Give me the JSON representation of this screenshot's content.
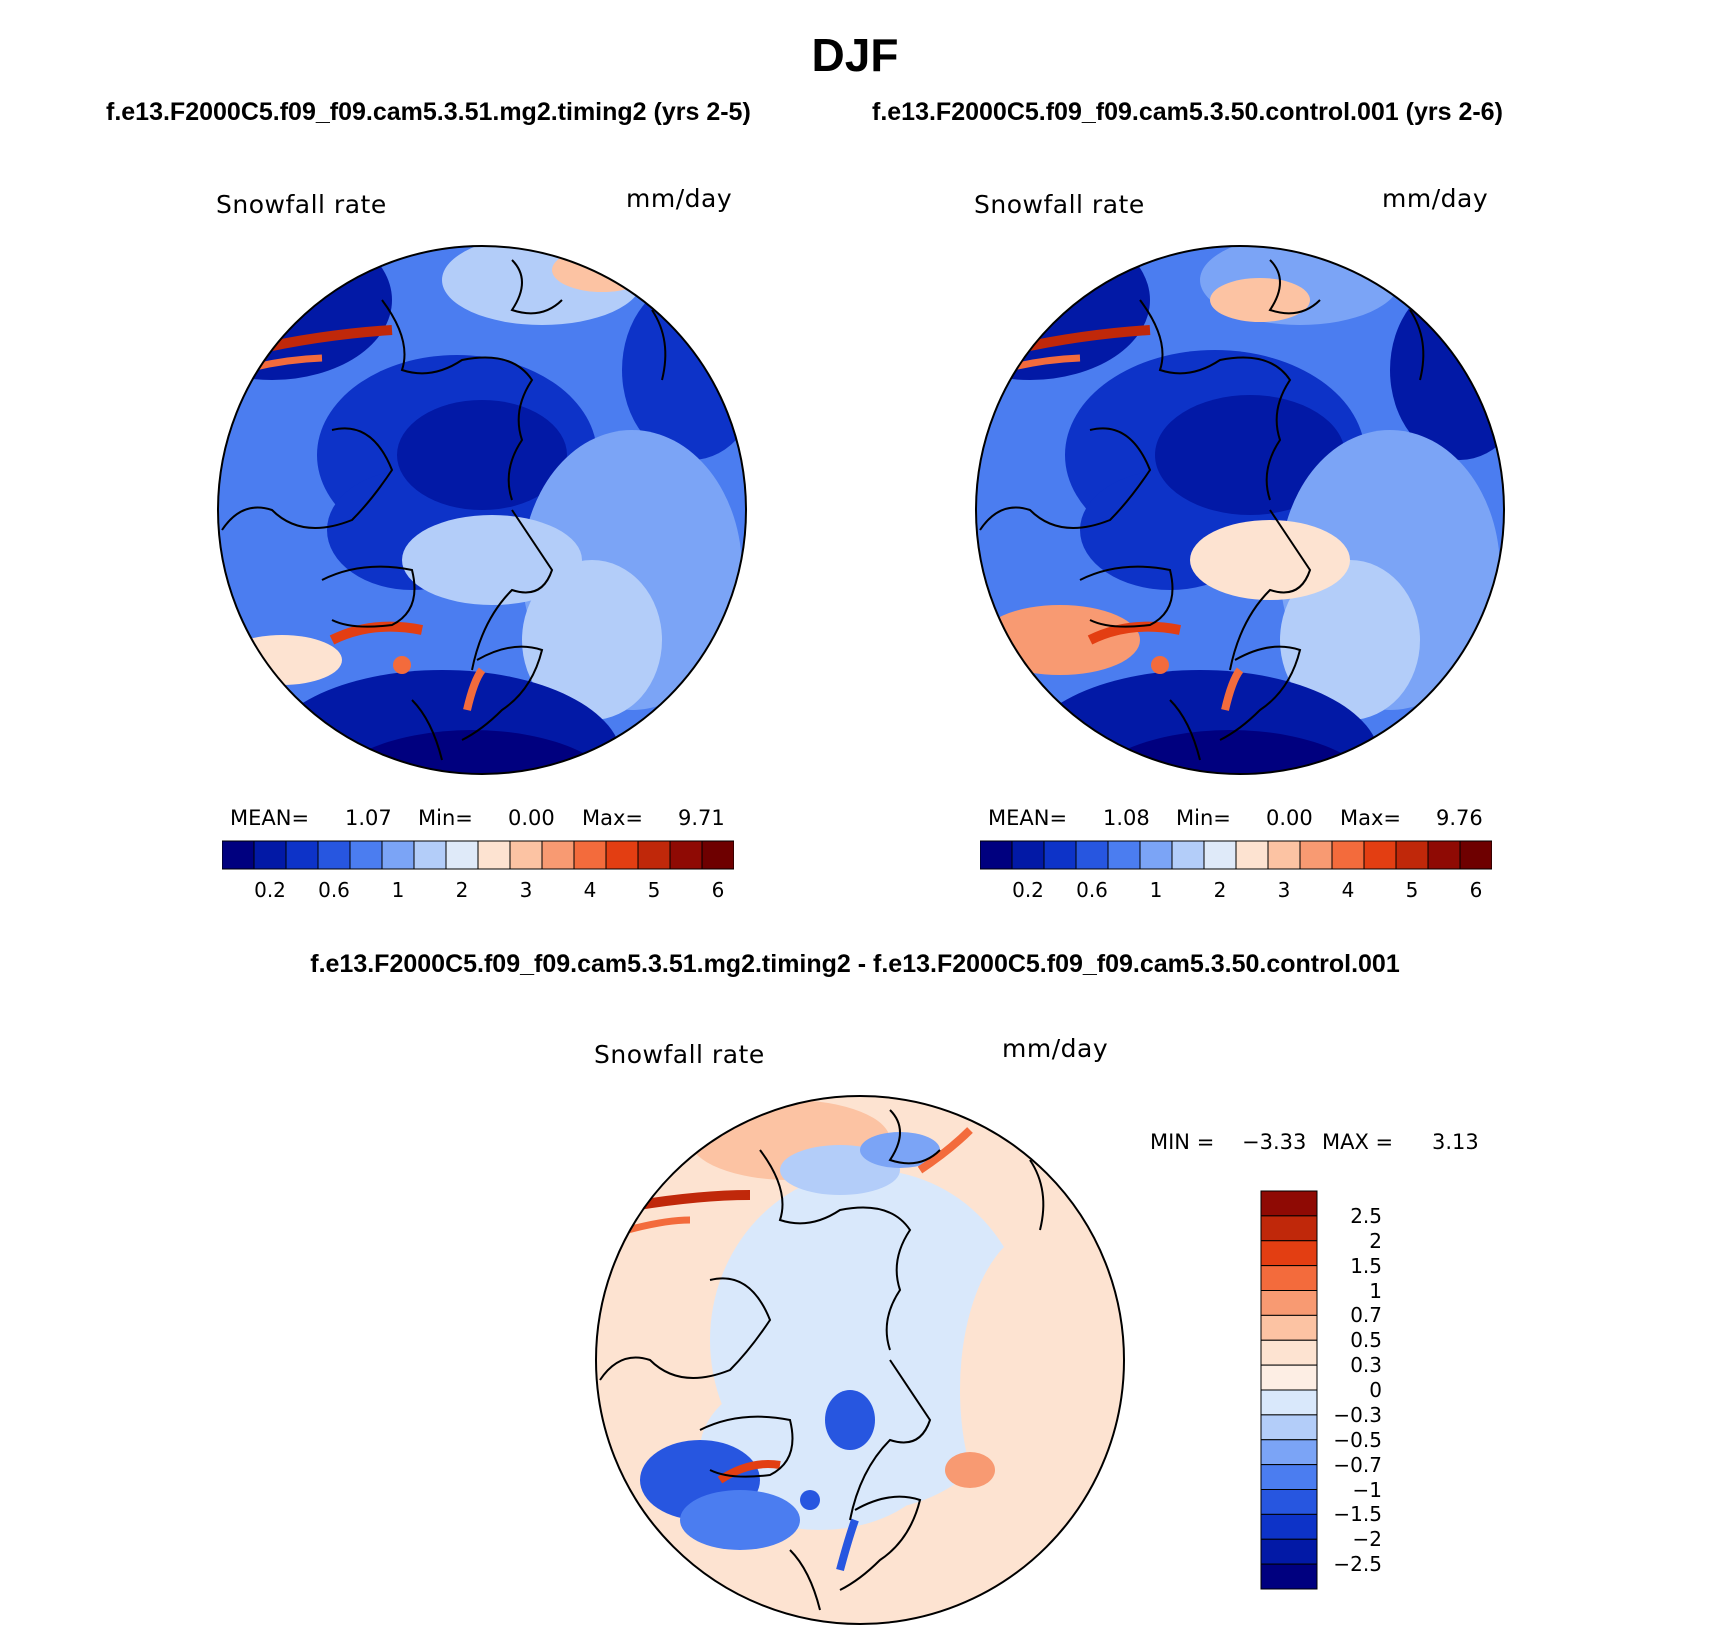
{
  "title": "DJF",
  "panels": [
    {
      "case": "f.e13.F2000C5.f09_f09.cam5.3.51.mg2.timing2 (yrs 2-5)",
      "variable": "Snowfall rate",
      "units": "mm/day",
      "mean_label": "MEAN=",
      "mean_value": "1.07",
      "min_label": "Min=",
      "min_value": "0.00",
      "max_label": "Max=",
      "max_value": "9.71"
    },
    {
      "case": "f.e13.F2000C5.f09_f09.cam5.3.50.control.001 (yrs 2-6)",
      "variable": "Snowfall rate",
      "units": "mm/day",
      "mean_label": "MEAN=",
      "mean_value": "1.08",
      "min_label": "Min=",
      "min_value": "0.00",
      "max_label": "Max=",
      "max_value": "9.76"
    }
  ],
  "diff_panel": {
    "title": "f.e13.F2000C5.f09_f09.cam5.3.51.mg2.timing2 - f.e13.F2000C5.f09_f09.cam5.3.50.control.001",
    "variable": "Snowfall rate",
    "units": "mm/day",
    "min_label": "MIN =",
    "min_value": "−3.33",
    "max_label": "MAX =",
    "max_value": "3.13"
  },
  "abs_colorbar": {
    "tick_labels": [
      "0.2",
      "0.6",
      "1",
      "2",
      "3",
      "4",
      "5",
      "6"
    ],
    "colors": [
      "#00007f",
      "#0219a6",
      "#0d33c8",
      "#2756e0",
      "#4b7df0",
      "#7ba4f6",
      "#b3cdf9",
      "#dfeaf9",
      "#fde3d1",
      "#fcc3a3",
      "#f89a72",
      "#f36b3c",
      "#e33e12",
      "#c0280a",
      "#8f0a04",
      "#6e0000"
    ]
  },
  "diff_colorbar": {
    "tick_labels": [
      "2.5",
      "2",
      "1.5",
      "1",
      "0.7",
      "0.5",
      "0.3",
      "0",
      "−0.3",
      "−0.5",
      "−0.7",
      "−1",
      "−1.5",
      "−2",
      "−2.5"
    ],
    "colors": [
      "#8f0a04",
      "#c0280a",
      "#e33e12",
      "#f36b3c",
      "#f89a72",
      "#fcc3a3",
      "#fde3d1",
      "#fdeee4",
      "#d9e8fb",
      "#b3cdf9",
      "#7ba4f6",
      "#4b7df0",
      "#2756e0",
      "#0d33c8",
      "#0219a6",
      "#00007f"
    ]
  }
}
